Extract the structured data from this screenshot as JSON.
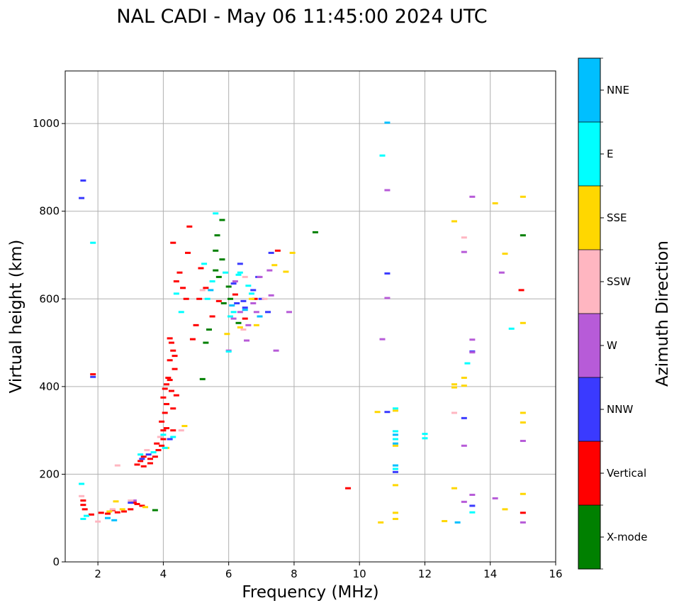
{
  "chart_data": {
    "type": "scatter",
    "title": "NAL CADI - May 06 11:45:00 2024 UTC",
    "xlabel": "Frequency (MHz)",
    "ylabel": "Virtual height (km)",
    "xlim": [
      1,
      16
    ],
    "ylim": [
      0,
      1120
    ],
    "xticks": [
      "2",
      "4",
      "6",
      "8",
      "10",
      "12",
      "14",
      "16"
    ],
    "yticks": [
      "0",
      "200",
      "400",
      "600",
      "800",
      "1000"
    ],
    "grid": true,
    "colorbar": {
      "label": "Azimuth Direction",
      "categories": [
        {
          "name": "X-mode",
          "color": "#008000"
        },
        {
          "name": "Vertical",
          "color": "#ff0000"
        },
        {
          "name": "NNW",
          "color": "#3a3aff"
        },
        {
          "name": "W",
          "color": "#b75bd8"
        },
        {
          "name": "SSW",
          "color": "#ffb6c1"
        },
        {
          "name": "SSE",
          "color": "#ffd700"
        },
        {
          "name": "E",
          "color": "#00ffff"
        },
        {
          "name": "NNE",
          "color": "#00bfff"
        }
      ]
    },
    "series": [
      {
        "name": "X-mode",
        "points": [
          [
            8.65,
            752
          ],
          [
            5.8,
            780
          ],
          [
            5.65,
            745
          ],
          [
            15.0,
            745
          ],
          [
            5.2,
            417
          ],
          [
            5.6,
            710
          ],
          [
            5.8,
            690
          ],
          [
            5.7,
            650
          ],
          [
            6.0,
            628
          ],
          [
            6.3,
            545
          ],
          [
            5.4,
            530
          ],
          [
            5.3,
            500
          ],
          [
            5.6,
            665
          ],
          [
            5.85,
            590
          ],
          [
            3.75,
            118
          ],
          [
            6.05,
            600
          ]
        ]
      },
      {
        "name": "Vertical",
        "points": [
          [
            1.55,
            140
          ],
          [
            1.55,
            130
          ],
          [
            1.6,
            120
          ],
          [
            1.8,
            108
          ],
          [
            2.1,
            112
          ],
          [
            2.3,
            110
          ],
          [
            2.45,
            118
          ],
          [
            2.6,
            113
          ],
          [
            2.8,
            115
          ],
          [
            3.0,
            120
          ],
          [
            3.1,
            135
          ],
          [
            3.2,
            132
          ],
          [
            3.35,
            128
          ],
          [
            3.2,
            222
          ],
          [
            3.3,
            230
          ],
          [
            3.4,
            240
          ],
          [
            3.6,
            235
          ],
          [
            3.75,
            240
          ],
          [
            3.85,
            255
          ],
          [
            3.95,
            265
          ],
          [
            4.0,
            280
          ],
          [
            4.0,
            300
          ],
          [
            3.95,
            320
          ],
          [
            4.1,
            305
          ],
          [
            4.05,
            340
          ],
          [
            4.1,
            360
          ],
          [
            4.0,
            375
          ],
          [
            4.05,
            395
          ],
          [
            4.1,
            405
          ],
          [
            4.25,
            390
          ],
          [
            4.15,
            420
          ],
          [
            4.2,
            460
          ],
          [
            4.25,
            500
          ],
          [
            4.3,
            482
          ],
          [
            4.2,
            510
          ],
          [
            4.35,
            470
          ],
          [
            4.35,
            440
          ],
          [
            4.4,
            380
          ],
          [
            4.3,
            350
          ],
          [
            4.4,
            640
          ],
          [
            4.5,
            660
          ],
          [
            4.75,
            705
          ],
          [
            4.6,
            625
          ],
          [
            4.7,
            600
          ],
          [
            4.9,
            508
          ],
          [
            5.0,
            540
          ],
          [
            5.1,
            600
          ],
          [
            5.15,
            670
          ],
          [
            5.3,
            625
          ],
          [
            5.5,
            560
          ],
          [
            5.7,
            595
          ],
          [
            6.2,
            610
          ],
          [
            6.5,
            555
          ],
          [
            7.5,
            710
          ],
          [
            6.8,
            600
          ],
          [
            4.3,
            728
          ],
          [
            4.8,
            765
          ],
          [
            1.85,
            428
          ],
          [
            9.65,
            168
          ],
          [
            14.95,
            620
          ],
          [
            15.0,
            112
          ],
          [
            3.8,
            270
          ],
          [
            4.3,
            300
          ],
          [
            3.6,
            225
          ],
          [
            3.4,
            218
          ],
          [
            4.2,
            415
          ]
        ]
      },
      {
        "name": "NNW",
        "points": [
          [
            1.55,
            870
          ],
          [
            1.5,
            830
          ],
          [
            6.35,
            680
          ],
          [
            6.15,
            635
          ],
          [
            6.25,
            590
          ],
          [
            6.5,
            580
          ],
          [
            6.75,
            620
          ],
          [
            7.2,
            570
          ],
          [
            7.3,
            705
          ],
          [
            10.85,
            658
          ],
          [
            10.85,
            342
          ],
          [
            13.45,
            480
          ],
          [
            13.2,
            328
          ],
          [
            13.45,
            128
          ],
          [
            11.1,
            205
          ],
          [
            3.0,
            135
          ],
          [
            3.35,
            235
          ],
          [
            3.55,
            245
          ],
          [
            4.2,
            280
          ],
          [
            6.9,
            650
          ],
          [
            7.0,
            600
          ],
          [
            6.45,
            595
          ],
          [
            1.85,
            422
          ]
        ]
      },
      {
        "name": "W",
        "points": [
          [
            6.55,
            505
          ],
          [
            6.15,
            555
          ],
          [
            6.35,
            570
          ],
          [
            6.75,
            590
          ],
          [
            6.95,
            650
          ],
          [
            7.25,
            665
          ],
          [
            7.85,
            570
          ],
          [
            7.45,
            482
          ],
          [
            6.0,
            482
          ],
          [
            10.85,
            848
          ],
          [
            10.85,
            602
          ],
          [
            10.7,
            508
          ],
          [
            13.45,
            833
          ],
          [
            13.2,
            707
          ],
          [
            14.35,
            660
          ],
          [
            13.45,
            507
          ],
          [
            13.45,
            478
          ],
          [
            13.2,
            265
          ],
          [
            13.45,
            153
          ],
          [
            13.2,
            137
          ],
          [
            14.15,
            145
          ],
          [
            15.0,
            276
          ],
          [
            15.0,
            90
          ],
          [
            3.1,
            140
          ],
          [
            6.2,
            640
          ],
          [
            6.6,
            540
          ],
          [
            6.85,
            570
          ],
          [
            7.3,
            608
          ]
        ]
      },
      {
        "name": "SSW",
        "points": [
          [
            1.5,
            150
          ],
          [
            2.0,
            92
          ],
          [
            2.6,
            220
          ],
          [
            3.0,
            140
          ],
          [
            3.9,
            285
          ],
          [
            4.55,
            300
          ],
          [
            5.2,
            620
          ],
          [
            6.45,
            530
          ],
          [
            6.5,
            650
          ],
          [
            7.1,
            600
          ],
          [
            12.9,
            340
          ],
          [
            13.2,
            740
          ],
          [
            3.5,
            255
          ],
          [
            2.45,
            120
          ]
        ]
      },
      {
        "name": "SSE",
        "points": [
          [
            2.35,
            115
          ],
          [
            2.55,
            138
          ],
          [
            2.75,
            120
          ],
          [
            3.45,
            125
          ],
          [
            4.1,
            260
          ],
          [
            4.65,
            310
          ],
          [
            5.95,
            520
          ],
          [
            6.35,
            535
          ],
          [
            6.85,
            540
          ],
          [
            7.4,
            677
          ],
          [
            7.95,
            705
          ],
          [
            7.75,
            662
          ],
          [
            10.55,
            342
          ],
          [
            10.65,
            90
          ],
          [
            11.1,
            112
          ],
          [
            11.1,
            98
          ],
          [
            11.1,
            175
          ],
          [
            11.1,
            265
          ],
          [
            11.1,
            345
          ],
          [
            12.6,
            93
          ],
          [
            12.9,
            777
          ],
          [
            12.9,
            405
          ],
          [
            12.9,
            398
          ],
          [
            12.9,
            168
          ],
          [
            13.2,
            420
          ],
          [
            13.2,
            402
          ],
          [
            14.15,
            818
          ],
          [
            14.45,
            703
          ],
          [
            14.45,
            120
          ],
          [
            15.0,
            833
          ],
          [
            15.0,
            545
          ],
          [
            15.0,
            340
          ],
          [
            15.0,
            318
          ],
          [
            15.0,
            155
          ],
          [
            6.7,
            600
          ]
        ]
      },
      {
        "name": "E",
        "points": [
          [
            1.5,
            178
          ],
          [
            1.55,
            98
          ],
          [
            1.65,
            105
          ],
          [
            1.85,
            728
          ],
          [
            3.3,
            245
          ],
          [
            3.7,
            250
          ],
          [
            4.0,
            290
          ],
          [
            4.3,
            285
          ],
          [
            4.05,
            260
          ],
          [
            5.25,
            680
          ],
          [
            5.6,
            795
          ],
          [
            5.5,
            640
          ],
          [
            5.35,
            600
          ],
          [
            6.35,
            660
          ],
          [
            6.3,
            655
          ],
          [
            6.7,
            612
          ],
          [
            6.15,
            570
          ],
          [
            6.0,
            480
          ],
          [
            5.9,
            660
          ],
          [
            11.1,
            280
          ],
          [
            11.1,
            298
          ],
          [
            11.1,
            212
          ],
          [
            11.1,
            350
          ],
          [
            12.0,
            292
          ],
          [
            12.0,
            282
          ],
          [
            13.3,
            453
          ],
          [
            13.45,
            113
          ],
          [
            14.65,
            532
          ],
          [
            10.7,
            927
          ],
          [
            4.55,
            570
          ],
          [
            4.4,
            612
          ],
          [
            6.05,
            560
          ],
          [
            6.6,
            630
          ]
        ]
      },
      {
        "name": "NNE",
        "points": [
          [
            10.85,
            1002
          ],
          [
            11.1,
            220
          ],
          [
            11.1,
            290
          ],
          [
            11.1,
            270
          ],
          [
            13.0,
            90
          ],
          [
            2.3,
            100
          ],
          [
            2.5,
            95
          ],
          [
            5.45,
            620
          ],
          [
            6.1,
            585
          ],
          [
            6.5,
            575
          ],
          [
            6.95,
            560
          ]
        ]
      }
    ]
  }
}
